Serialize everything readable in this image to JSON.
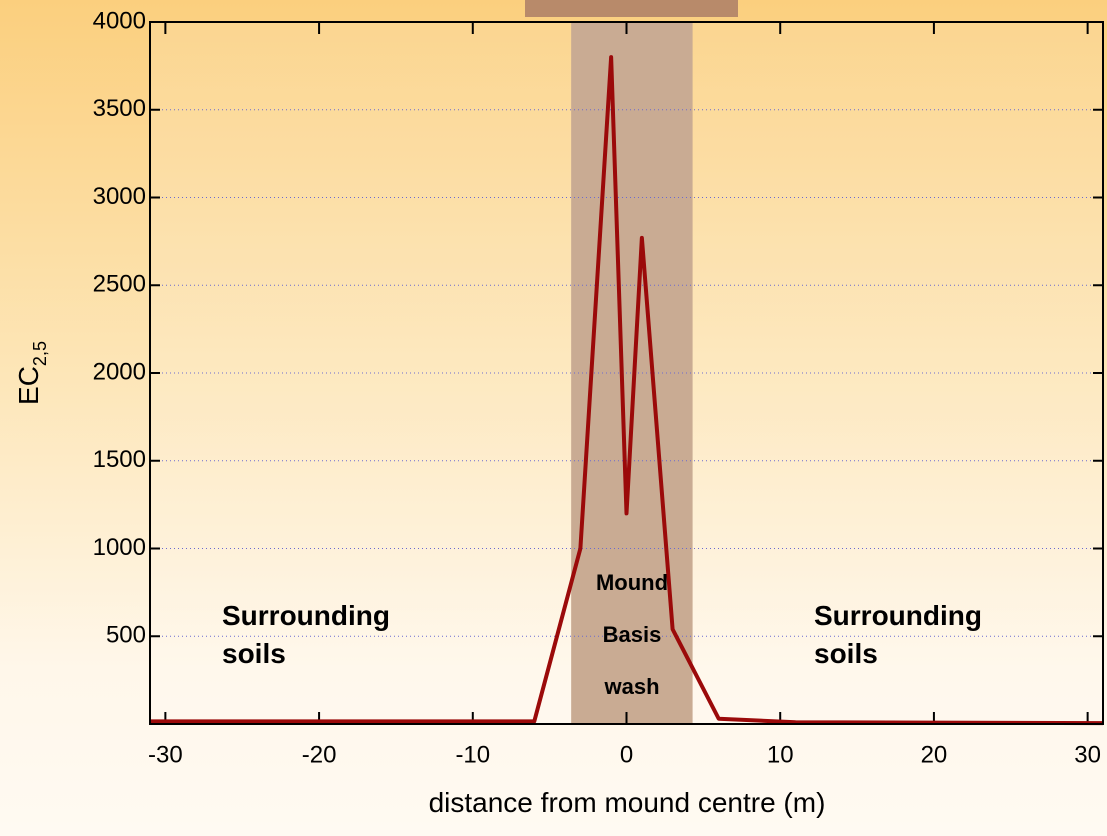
{
  "chart_data": {
    "type": "line",
    "xlabel": "distance from mound centre (m)",
    "ylabel": {
      "text": "EC",
      "sub": "2,5"
    },
    "x": [
      -31,
      -6,
      -3,
      -1,
      0,
      1,
      3,
      6,
      11,
      31
    ],
    "series": [
      {
        "color": "#9b0a0a",
        "values": [
          15,
          15,
          1000,
          3800,
          1200,
          2770,
          540,
          30,
          10,
          5
        ]
      }
    ],
    "xlim": [
      -31,
      31
    ],
    "ylim": [
      0,
      4000
    ],
    "xticks": [
      -30,
      -20,
      -10,
      0,
      10,
      20,
      30
    ],
    "yticks": [
      500,
      1000,
      1500,
      2000,
      2500,
      3000,
      3500,
      4000
    ],
    "grid": true,
    "highlight": {
      "x": [
        -3.6,
        4.3
      ],
      "color": "#c9ab93"
    },
    "annotations": [
      {
        "lines": [
          "Surrounding",
          "soils"
        ]
      },
      {
        "lines": [
          "Mound",
          "Basis",
          "wash"
        ]
      },
      {
        "lines": [
          "Surrounding",
          "soils"
        ]
      }
    ]
  }
}
